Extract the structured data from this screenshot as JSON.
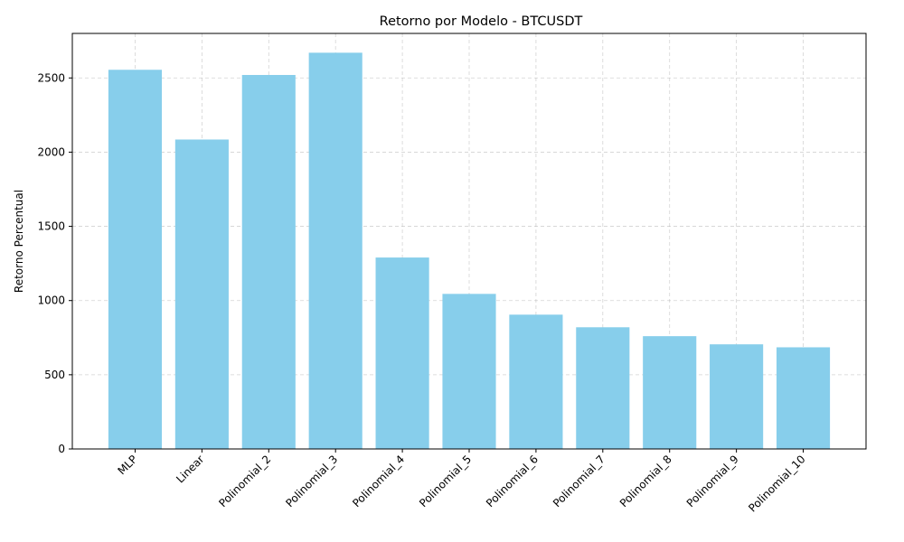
{
  "chart_data": {
    "type": "bar",
    "title": "Retorno por Modelo - BTCUSDT",
    "xlabel": "",
    "ylabel": "Retorno Percentual",
    "categories": [
      "MLP",
      "Linear",
      "Polinomial_2",
      "Polinomial_3",
      "Polinomial_4",
      "Polinomial_5",
      "Polinomial_6",
      "Polinomial_7",
      "Polinomial_8",
      "Polinomial_9",
      "Polinomial_10"
    ],
    "values": [
      2555,
      2085,
      2520,
      2670,
      1290,
      1045,
      905,
      820,
      760,
      705,
      685
    ],
    "ylim": [
      0,
      2800
    ],
    "yticks": [
      0,
      500,
      1000,
      1500,
      2000,
      2500
    ],
    "grid": true,
    "bar_color": "#87CEEB"
  }
}
